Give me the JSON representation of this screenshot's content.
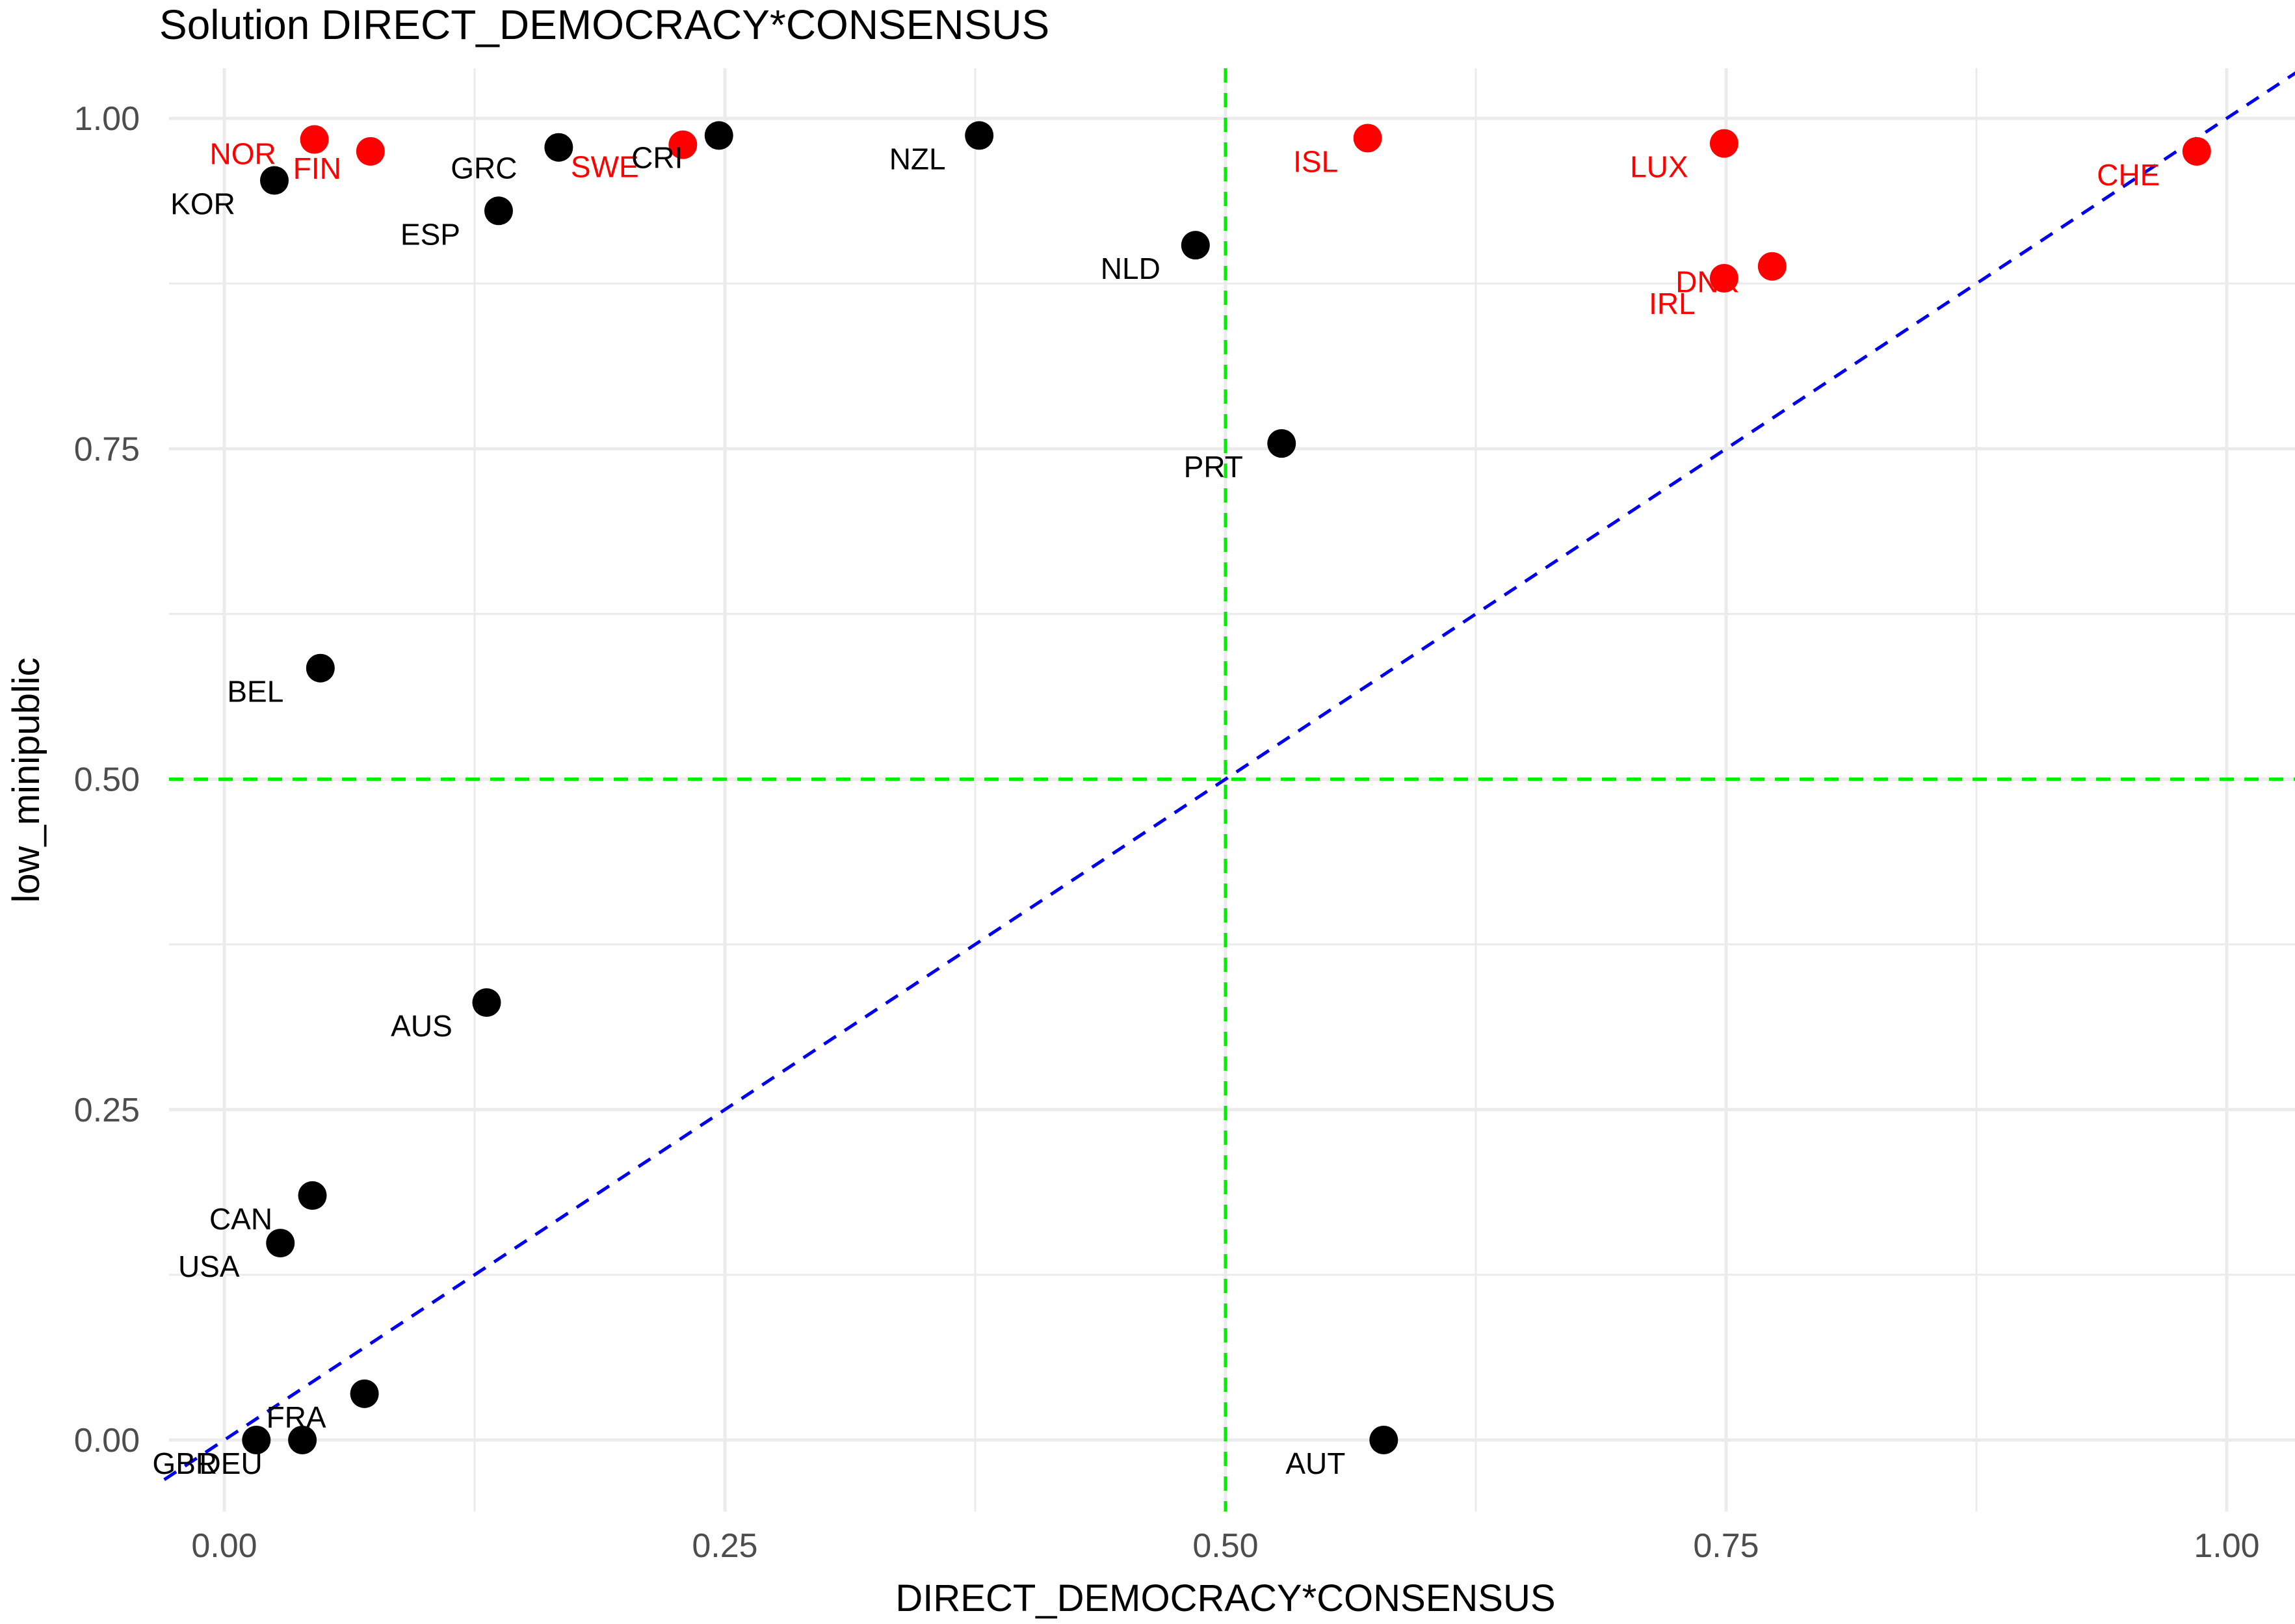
{
  "chart_data": {
    "type": "scatter",
    "title": "Solution DIRECT_DEMOCRACY*CONSENSUS",
    "xlabel": "DIRECT_DEMOCRACY*CONSENSUS",
    "ylabel": "low_minipublic",
    "xlim": [
      -0.03,
      1.04
    ],
    "ylim": [
      -0.035,
      1.035
    ],
    "xticks": [
      0.0,
      0.25,
      0.5,
      0.75,
      1.0
    ],
    "xtick_labels": [
      "0.00",
      "0.25",
      "0.50",
      "0.75",
      "1.00"
    ],
    "yticks": [
      0.0,
      0.25,
      0.5,
      0.75,
      1.0
    ],
    "ytick_labels": [
      "0.00",
      "0.25",
      "0.50",
      "0.75",
      "1.00"
    ],
    "grid": true,
    "legend": "none",
    "reference_lines": [
      {
        "type": "vline",
        "x": 0.5,
        "color": "#00ee00",
        "style": "dashed"
      },
      {
        "type": "hline",
        "y": 0.5,
        "color": "#00ee00",
        "style": "dashed"
      },
      {
        "type": "diagonal",
        "slope": 1,
        "intercept": 0,
        "color": "#0000ee",
        "style": "dashed"
      }
    ],
    "colors": {
      "highlight": "#ff0000",
      "default": "#000000"
    },
    "points": [
      {
        "label": "NOR",
        "x": 0.045,
        "y": 0.984,
        "color": "#ff0000",
        "lx": -110,
        "ly": 38
      },
      {
        "label": "FIN",
        "x": 0.073,
        "y": 0.975,
        "color": "#ff0000",
        "lx": -82,
        "ly": 42
      },
      {
        "label": "KOR",
        "x": 0.025,
        "y": 0.953,
        "color": "#000000",
        "lx": -110,
        "ly": 52
      },
      {
        "label": "GRC",
        "x": 0.167,
        "y": 0.978,
        "color": "#000000",
        "lx": -115,
        "ly": 48
      },
      {
        "label": "ESP",
        "x": 0.137,
        "y": 0.93,
        "color": "#000000",
        "lx": -105,
        "ly": 52
      },
      {
        "label": "SWE",
        "x": 0.229,
        "y": 0.98,
        "color": "#ff0000",
        "lx": -120,
        "ly": 50
      },
      {
        "label": "CRI",
        "x": 0.247,
        "y": 0.987,
        "color": "#000000",
        "lx": -95,
        "ly": 50
      },
      {
        "label": "NZL",
        "x": 0.377,
        "y": 0.987,
        "color": "#000000",
        "lx": -95,
        "ly": 52
      },
      {
        "label": "NLD",
        "x": 0.485,
        "y": 0.904,
        "color": "#000000",
        "lx": -100,
        "ly": 52
      },
      {
        "label": "ISL",
        "x": 0.571,
        "y": 0.985,
        "color": "#ff0000",
        "lx": -80,
        "ly": 52
      },
      {
        "label": "LUX",
        "x": 0.749,
        "y": 0.981,
        "color": "#ff0000",
        "lx": -100,
        "ly": 52
      },
      {
        "label": "CHE",
        "x": 0.985,
        "y": 0.975,
        "color": "#ff0000",
        "lx": -105,
        "ly": 52
      },
      {
        "label": "DNK",
        "x": 0.773,
        "y": 0.888,
        "color": "#ff0000",
        "lx": -100,
        "ly": 40
      },
      {
        "label": "IRL",
        "x": 0.749,
        "y": 0.879,
        "color": "#ff0000",
        "lx": -80,
        "ly": 55
      },
      {
        "label": "PRT",
        "x": 0.528,
        "y": 0.754,
        "color": "#000000",
        "lx": -105,
        "ly": 52
      },
      {
        "label": "BEL",
        "x": 0.048,
        "y": 0.584,
        "color": "#000000",
        "lx": -100,
        "ly": 52
      },
      {
        "label": "AUS",
        "x": 0.131,
        "y": 0.331,
        "color": "#000000",
        "lx": -100,
        "ly": 52
      },
      {
        "label": "CAN",
        "x": 0.044,
        "y": 0.185,
        "color": "#000000",
        "lx": -110,
        "ly": 52
      },
      {
        "label": "USA",
        "x": 0.028,
        "y": 0.149,
        "color": "#000000",
        "lx": -110,
        "ly": 52
      },
      {
        "label": "FRA",
        "x": 0.07,
        "y": 0.035,
        "color": "#000000",
        "lx": -105,
        "ly": 52
      },
      {
        "label": "GBR",
        "x": 0.016,
        "y": 0.0,
        "color": "#000000",
        "lx": -110,
        "ly": 52
      },
      {
        "label": "DEU",
        "x": 0.039,
        "y": 0.0,
        "color": "#000000",
        "lx": -110,
        "ly": 52
      },
      {
        "label": "AUT",
        "x": 0.579,
        "y": 0.0,
        "color": "#000000",
        "lx": -105,
        "ly": 52
      }
    ]
  }
}
